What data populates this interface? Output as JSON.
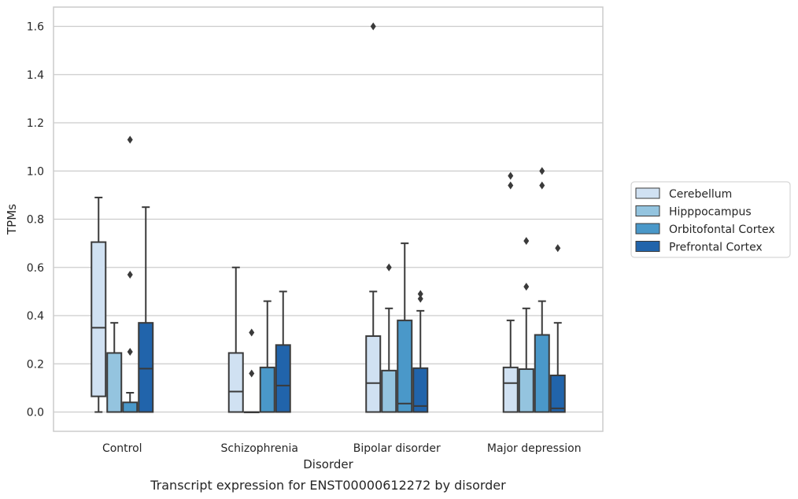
{
  "chart_data": {
    "type": "box",
    "title": "",
    "caption": "Transcript expression for ENST00000612272 by disorder",
    "xlabel": "Disorder",
    "ylabel": "TPMs",
    "ylim": [
      -0.08,
      1.68
    ],
    "yticks": [
      0.0,
      0.2,
      0.4,
      0.6,
      0.8,
      1.0,
      1.2,
      1.4,
      1.6
    ],
    "ytick_labels": [
      "0.0",
      "0.2",
      "0.4",
      "0.6",
      "0.8",
      "1.0",
      "1.2",
      "1.4",
      "1.6"
    ],
    "grid": "horizontal",
    "legend_position": "right",
    "categories": [
      "Control",
      "Schizophrenia",
      "Bipolar disorder",
      "Major depression"
    ],
    "series": [
      {
        "name": "Cerebellum",
        "color": "#d0e1f2",
        "boxes": [
          {
            "whislo": 0.0,
            "q1": 0.065,
            "med": 0.35,
            "q3": 0.705,
            "whishi": 0.89,
            "fliers": []
          },
          {
            "whislo": 0.0,
            "q1": 0.0,
            "med": 0.085,
            "q3": 0.245,
            "whishi": 0.6,
            "fliers": []
          },
          {
            "whislo": 0.0,
            "q1": 0.0,
            "med": 0.12,
            "q3": 0.315,
            "whishi": 0.5,
            "fliers": [
              1.6
            ]
          },
          {
            "whislo": 0.0,
            "q1": 0.0,
            "med": 0.12,
            "q3": 0.185,
            "whishi": 0.38,
            "fliers": [
              0.94,
              0.98
            ]
          }
        ]
      },
      {
        "name": "Hipppocampus",
        "color": "#94c4df",
        "boxes": [
          {
            "whislo": 0.0,
            "q1": 0.0,
            "med": 0.0,
            "q3": 0.245,
            "whishi": 0.37,
            "fliers": []
          },
          {
            "whislo": 0.0,
            "q1": 0.0,
            "med": 0.0,
            "q3": 0.0,
            "whishi": 0.0,
            "fliers": [
              0.16,
              0.33
            ]
          },
          {
            "whislo": 0.0,
            "q1": 0.0,
            "med": 0.0,
            "q3": 0.172,
            "whishi": 0.43,
            "fliers": [
              0.6
            ]
          },
          {
            "whislo": 0.0,
            "q1": 0.0,
            "med": 0.0,
            "q3": 0.178,
            "whishi": 0.43,
            "fliers": [
              0.52,
              0.71
            ]
          }
        ]
      },
      {
        "name": "Orbitofontal Cortex",
        "color": "#4a98c9",
        "boxes": [
          {
            "whislo": 0.0,
            "q1": 0.0,
            "med": 0.0,
            "q3": 0.04,
            "whishi": 0.08,
            "fliers": [
              0.25,
              0.57,
              1.13
            ]
          },
          {
            "whislo": 0.0,
            "q1": 0.0,
            "med": 0.0,
            "q3": 0.185,
            "whishi": 0.46,
            "fliers": []
          },
          {
            "whislo": 0.0,
            "q1": 0.0,
            "med": 0.035,
            "q3": 0.38,
            "whishi": 0.7,
            "fliers": []
          },
          {
            "whislo": 0.0,
            "q1": 0.0,
            "med": 0.0,
            "q3": 0.32,
            "whishi": 0.46,
            "fliers": [
              0.94,
              1.0
            ]
          }
        ]
      },
      {
        "name": "Prefrontal Cortex",
        "color": "#2164ab",
        "boxes": [
          {
            "whislo": 0.0,
            "q1": 0.0,
            "med": 0.18,
            "q3": 0.37,
            "whishi": 0.85,
            "fliers": []
          },
          {
            "whislo": 0.0,
            "q1": 0.0,
            "med": 0.11,
            "q3": 0.278,
            "whishi": 0.5,
            "fliers": []
          },
          {
            "whislo": 0.0,
            "q1": 0.0,
            "med": 0.025,
            "q3": 0.182,
            "whishi": 0.42,
            "fliers": [
              0.47,
              0.49
            ]
          },
          {
            "whislo": 0.0,
            "q1": 0.0,
            "med": 0.015,
            "q3": 0.152,
            "whishi": 0.37,
            "fliers": [
              0.68
            ]
          }
        ]
      }
    ]
  }
}
